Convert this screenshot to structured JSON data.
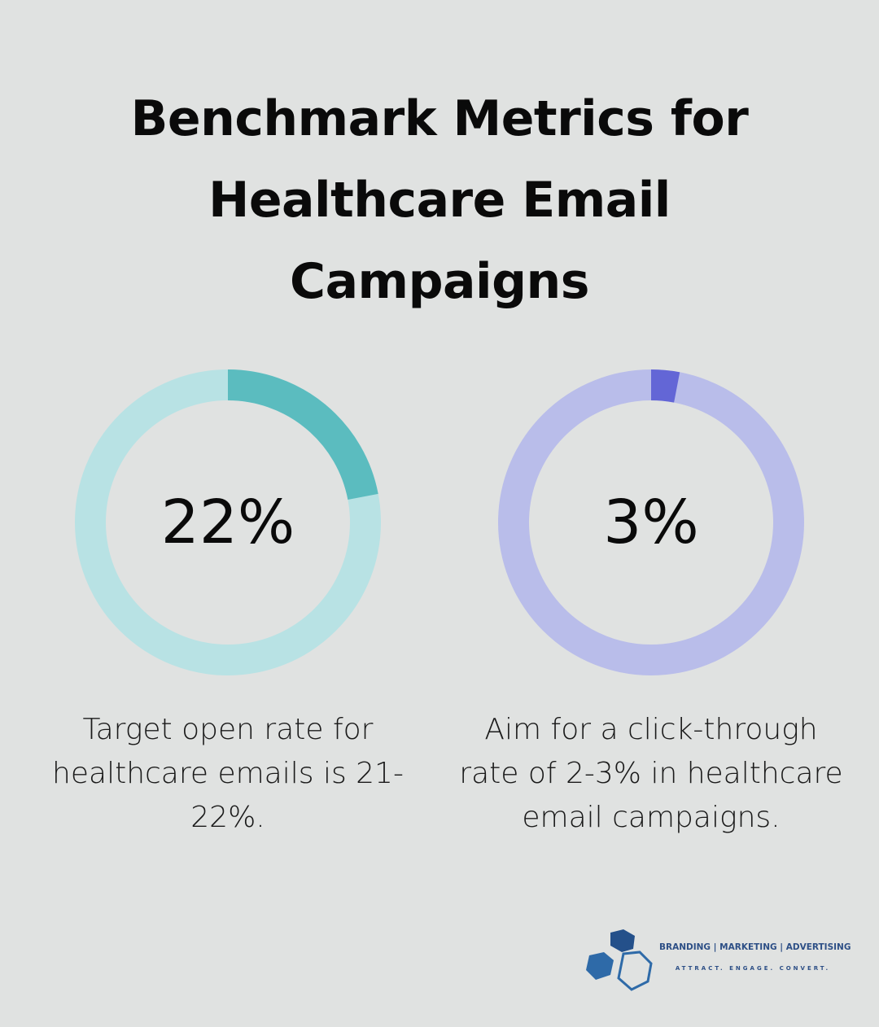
{
  "title": "Benchmark Metrics for Healthcare Email Campaigns",
  "chart_data": [
    {
      "type": "pie",
      "variant": "donut",
      "value": 22,
      "max": 100,
      "label": "22%",
      "caption": "Target open rate for healthcare emails is 21-22%.",
      "colors": {
        "filled": "#5bbcbf",
        "track": "#b8e2e4"
      }
    },
    {
      "type": "pie",
      "variant": "donut",
      "value": 3,
      "max": 100,
      "label": "3%",
      "caption": "Aim for a click-through rate of 2-3% in healthcare email campaigns.",
      "colors": {
        "filled": "#6366d6",
        "track": "#b9bdea"
      }
    }
  ],
  "logo": {
    "line1": "BRANDING | MARKETING | ADVERTISING",
    "line2": "ATTRACT. ENGAGE. CONVERT.",
    "icon": "hexagons-logo-icon",
    "colors": {
      "dark": "#24508a",
      "mid": "#2e6aa8",
      "outline": "#2e6aa8"
    }
  }
}
